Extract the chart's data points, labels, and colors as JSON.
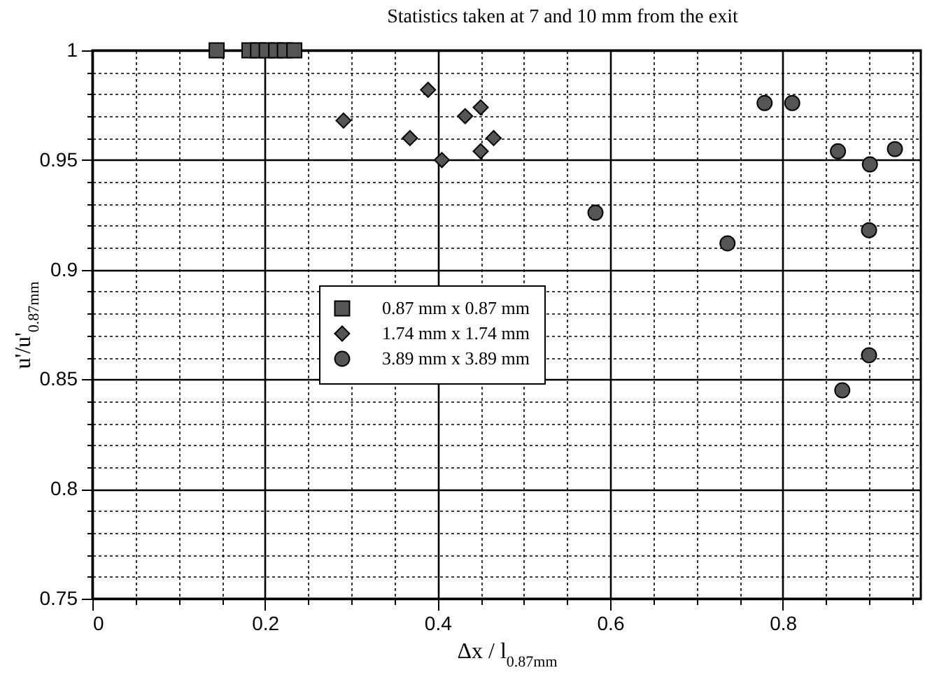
{
  "chart_data": {
    "type": "scatter",
    "title": "Statistics taken at 7 and 10 mm from the exit",
    "xlabel": "Δx / l$_{0.87mm}$",
    "ylabel": "u'/u'$_{0.87mm}$",
    "xlim": [
      0,
      0.96
    ],
    "ylim": [
      0.75,
      1
    ],
    "xticks": [
      0,
      {
        "value": 0.05,
        "label": null
      },
      {
        "value": 0.1,
        "label": null
      },
      {
        "value": 0.15,
        "label": null
      },
      0.2,
      {
        "value": 0.25,
        "label": null
      },
      {
        "value": 0.3,
        "label": null
      },
      {
        "value": 0.35,
        "label": null
      },
      0.4,
      {
        "value": 0.45,
        "label": null
      },
      {
        "value": 0.5,
        "label": null
      },
      {
        "value": 0.55,
        "label": null
      },
      0.6,
      {
        "value": 0.65,
        "label": null
      },
      {
        "value": 0.7,
        "label": null
      },
      {
        "value": 0.75,
        "label": null
      },
      0.8,
      {
        "value": 0.85,
        "label": null
      },
      {
        "value": 0.9,
        "label": null
      },
      {
        "value": 0.95,
        "label": null
      }
    ],
    "yticks": [
      0.75,
      {
        "value": 0.76,
        "label": null
      },
      {
        "value": 0.77,
        "label": null
      },
      {
        "value": 0.78,
        "label": null
      },
      {
        "value": 0.79,
        "label": null
      },
      0.8,
      {
        "value": 0.81,
        "label": null
      },
      {
        "value": 0.82,
        "label": null
      },
      {
        "value": 0.83,
        "label": null
      },
      {
        "value": 0.84,
        "label": null
      },
      0.85,
      {
        "value": 0.86,
        "label": null
      },
      {
        "value": 0.87,
        "label": null
      },
      {
        "value": 0.88,
        "label": null
      },
      {
        "value": 0.89,
        "label": null
      },
      0.9,
      {
        "value": 0.91,
        "label": null
      },
      {
        "value": 0.92,
        "label": null
      },
      {
        "value": 0.93,
        "label": null
      },
      {
        "value": 0.94,
        "label": null
      },
      0.95,
      {
        "value": 0.96,
        "label": null
      },
      {
        "value": 0.97,
        "label": null
      },
      {
        "value": 0.98,
        "label": null
      },
      {
        "value": 0.99,
        "label": null
      },
      1
    ],
    "grid": true,
    "legend": "left",
    "series": [
      {
        "name": "0.87 mm x 0.87 mm",
        "color": "#555555",
        "marker": "square",
        "x": [
          0.144,
          0.182,
          0.192,
          0.202,
          0.213,
          0.223,
          0.234
        ],
        "values": [
          1,
          1,
          1,
          1,
          1,
          1,
          1
        ]
      },
      {
        "name": "1.74 mm x 1.74 mm",
        "color": "#555555",
        "marker": "diamond",
        "x": [
          0.291,
          0.389,
          0.368,
          0.432,
          0.45,
          0.465,
          0.45,
          0.405
        ],
        "values": [
          0.968,
          0.982,
          0.96,
          0.97,
          0.974,
          0.96,
          0.954,
          0.95
        ]
      },
      {
        "name": "3.89 mm x 3.89 mm",
        "color": "#555555",
        "marker": "circle",
        "x": [
          0.583,
          0.779,
          0.811,
          0.736,
          0.864,
          0.901,
          0.93,
          0.9,
          0.9,
          0.869
        ],
        "values": [
          0.926,
          0.976,
          0.976,
          0.912,
          0.954,
          0.948,
          0.955,
          0.918,
          0.861,
          0.845
        ]
      }
    ]
  }
}
